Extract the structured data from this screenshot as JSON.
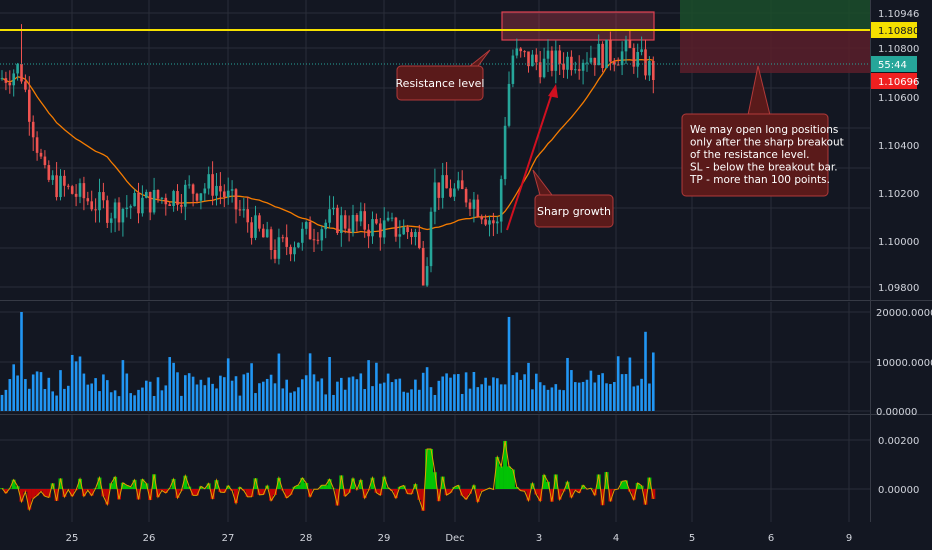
{
  "colors": {
    "background": "#131722",
    "grid": "#2a2e39",
    "up": "#26a69a",
    "down": "#ef5350",
    "ma": "#f57c00",
    "resistance": "#f5e000",
    "volume": "#2196f3",
    "osc_up": "#00e000",
    "osc_down": "#e00000",
    "annotation_fill": "#5a1a1a",
    "annotation_border": "#b23a3a"
  },
  "chart_data": [
    {
      "type": "candlestick",
      "pane": "price",
      "title": "",
      "y_ticks": [
        "1.10946",
        "1.10800",
        "1.10600",
        "1.10400",
        "1.10200",
        "1.10000",
        "1.09800"
      ],
      "ylim": [
        1.0978,
        1.1098
      ],
      "x_ticks": [
        "25",
        "26",
        "27",
        "28",
        "29",
        "Dec",
        "3",
        "4",
        "5",
        "6",
        "9"
      ],
      "resistance_level": 1.1088,
      "price_labels": {
        "resistance": "1.10880",
        "top": "1.10946",
        "countdown": "55:44",
        "current": "1.10696"
      },
      "key_points": [
        {
          "x": 0,
          "close": 1.1067
        },
        {
          "x": 20,
          "close": 1.1072
        },
        {
          "x": 45,
          "close": 1.1025
        },
        {
          "x": 110,
          "close": 1.1012
        },
        {
          "x": 215,
          "close": 1.1023
        },
        {
          "x": 275,
          "close": 1.0995
        },
        {
          "x": 330,
          "close": 1.1008
        },
        {
          "x": 415,
          "close": 1.1003
        },
        {
          "x": 425,
          "close": 1.0983
        },
        {
          "x": 432,
          "close": 1.1022
        },
        {
          "x": 470,
          "close": 1.1018
        },
        {
          "x": 498,
          "close": 1.1005
        },
        {
          "x": 505,
          "close": 1.105
        },
        {
          "x": 512,
          "close": 1.1077
        },
        {
          "x": 545,
          "close": 1.1073
        },
        {
          "x": 585,
          "close": 1.1077
        },
        {
          "x": 630,
          "close": 1.1078
        },
        {
          "x": 655,
          "close": 1.1069
        }
      ],
      "annotations": {
        "resistance_label": "Resistance level",
        "growth_label": "Sharp growth",
        "note_lines": [
          "We may open long positions",
          "only after the sharp breakout",
          "of the resistance level.",
          "SL - below the breakout bar.",
          "TP - more than 100 points."
        ]
      }
    },
    {
      "type": "bar",
      "pane": "volume",
      "y_ticks": [
        "20000.00000",
        "10000.00000",
        "0.00000"
      ],
      "ylim": [
        0,
        20000
      ]
    },
    {
      "type": "area",
      "pane": "oscillator",
      "y_ticks": [
        "0.00200",
        "0.00000"
      ]
    }
  ]
}
